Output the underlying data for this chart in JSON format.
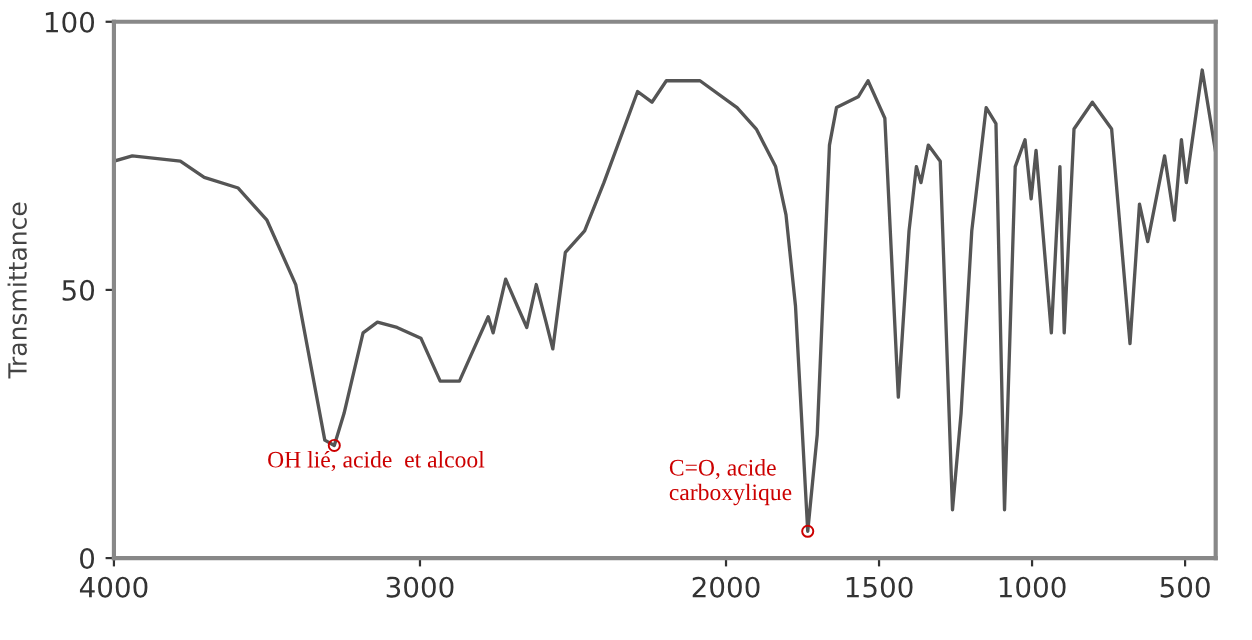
{
  "chart_data": {
    "type": "line",
    "ylabel": "Transmittance",
    "xlim": [
      4000,
      400
    ],
    "xticks": [
      4000,
      3000,
      2000,
      1500,
      1000,
      500
    ],
    "ylim": [
      0,
      100
    ],
    "yticks": [
      0,
      50,
      100
    ],
    "grid": false,
    "legend": false,
    "marker": "none",
    "line_style": "solid",
    "series": [
      {
        "color": "#555555",
        "x": [
          4000,
          3940,
          3783,
          3705,
          3594,
          3500,
          3406,
          3311,
          3280,
          3248,
          3186,
          3139,
          3075,
          2997,
          2934,
          2871,
          2824,
          2777,
          2761,
          2720,
          2682,
          2651,
          2620,
          2588,
          2566,
          2525,
          2462,
          2399,
          2289,
          2242,
          2195,
          2085,
          1964,
          1901,
          1838,
          1804,
          1773,
          1733,
          1702,
          1662,
          1639,
          1568,
          1536,
          1481,
          1437,
          1402,
          1378,
          1363,
          1339,
          1300,
          1260,
          1232,
          1197,
          1150,
          1118,
          1090,
          1055,
          1023,
          1003,
          987,
          937,
          909,
          895,
          863,
          803,
          740,
          680,
          649,
          622,
          567,
          535,
          512,
          496,
          444,
          401
        ],
        "values": [
          74,
          75,
          74,
          71,
          69,
          63,
          51,
          22,
          21,
          27,
          42,
          44,
          43,
          41,
          33,
          33,
          39,
          45,
          42,
          52,
          47,
          43,
          51,
          44,
          39,
          57,
          61,
          70,
          87,
          85,
          89,
          89,
          84,
          80,
          73,
          64,
          47,
          5,
          23,
          77,
          84,
          86,
          89,
          82,
          30,
          61,
          73,
          70,
          77,
          74,
          9,
          27,
          61,
          84,
          81,
          9,
          73,
          78,
          67,
          76,
          42,
          73,
          42,
          80,
          85,
          80,
          40,
          66,
          59,
          75,
          63,
          78,
          70,
          91,
          76
        ]
      }
    ],
    "annotations": [
      {
        "text": "OH lié, acide  et alcool",
        "x": 3280,
        "y": 21
      },
      {
        "text": "C=O, acide\ncarboxylique",
        "x": 1733,
        "y": 5
      }
    ]
  }
}
